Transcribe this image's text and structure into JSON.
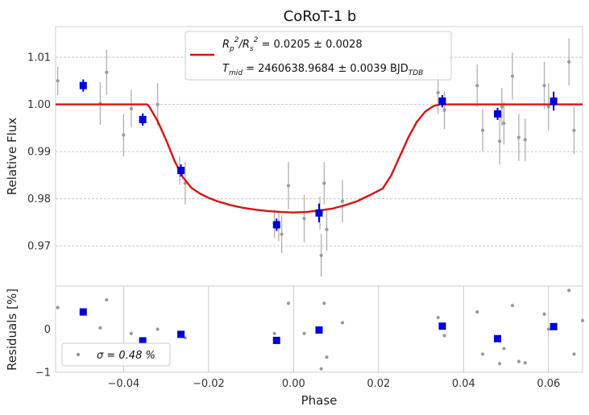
{
  "chart_data": [
    {
      "type": "scatter",
      "title": "CoRoT-1 b",
      "xlabel": "",
      "ylabel": "Relative Flux",
      "xlim": [
        -0.056,
        0.068
      ],
      "ylim": [
        0.9615,
        1.0165
      ],
      "y_ticks": [
        0.97,
        0.98,
        0.99,
        1.0,
        1.01
      ],
      "y_tick_labels": [
        "0.97",
        "0.98",
        "0.99",
        "1.00",
        "1.01"
      ],
      "grid": true,
      "legend": {
        "placement": "top-center",
        "model_line_1": "R_p^2/R_s^2 = 0.0205 ± 0.0028",
        "model_line_2": "T_mid = 2460638.9684 ± 0.0039 BJD_TDB"
      },
      "series": [
        {
          "kind": "raw",
          "color": "#9a9a9a",
          "points": [
            {
              "x": -0.0555,
              "y": 1.005,
              "err": 0.003
            },
            {
              "x": -0.0455,
              "y": 1.0002,
              "err": 0.0045
            },
            {
              "x": -0.044,
              "y": 1.0068,
              "err": 0.0048
            },
            {
              "x": -0.04,
              "y": 0.9935,
              "err": 0.0045
            },
            {
              "x": -0.0382,
              "y": 0.9991,
              "err": 0.004
            },
            {
              "x": -0.032,
              "y": 1.0,
              "err": 0.0045
            },
            {
              "x": -0.0268,
              "y": 0.986,
              "err": 0.003
            },
            {
              "x": -0.0255,
              "y": 0.9833,
              "err": 0.0045
            },
            {
              "x": -0.0045,
              "y": 0.9747,
              "err": 0.003
            },
            {
              "x": -0.0035,
              "y": 0.974,
              "err": 0.003
            },
            {
              "x": -0.0028,
              "y": 0.9725,
              "err": 0.004
            },
            {
              "x": -0.0012,
              "y": 0.9828,
              "err": 0.005
            },
            {
              "x": 0.0025,
              "y": 0.9758,
              "err": 0.005
            },
            {
              "x": 0.0062,
              "y": 0.977,
              "err": 0.0035
            },
            {
              "x": 0.0065,
              "y": 0.968,
              "err": 0.0045
            },
            {
              "x": 0.0072,
              "y": 0.9833,
              "err": 0.0045
            },
            {
              "x": 0.0078,
              "y": 0.9735,
              "err": 0.0045
            },
            {
              "x": 0.0115,
              "y": 0.9795,
              "err": 0.0045
            },
            {
              "x": 0.034,
              "y": 1.0025,
              "err": 0.0045
            },
            {
              "x": 0.0355,
              "y": 0.9988,
              "err": 0.004
            },
            {
              "x": 0.0432,
              "y": 1.004,
              "err": 0.0045
            },
            {
              "x": 0.0445,
              "y": 0.9945,
              "err": 0.0045
            },
            {
              "x": 0.0485,
              "y": 0.9922,
              "err": 0.005
            },
            {
              "x": 0.049,
              "y": 0.9995,
              "err": 0.004
            },
            {
              "x": 0.0495,
              "y": 0.996,
              "err": 0.0045
            },
            {
              "x": 0.0515,
              "y": 1.006,
              "err": 0.005
            },
            {
              "x": 0.053,
              "y": 0.993,
              "err": 0.005
            },
            {
              "x": 0.0545,
              "y": 0.9925,
              "err": 0.0045
            },
            {
              "x": 0.059,
              "y": 1.004,
              "err": 0.005
            },
            {
              "x": 0.06,
              "y": 0.9995,
              "err": 0.005
            },
            {
              "x": 0.0648,
              "y": 1.009,
              "err": 0.005
            },
            {
              "x": 0.066,
              "y": 0.9945,
              "err": 0.005
            }
          ]
        },
        {
          "kind": "binned",
          "color": "#0000dd",
          "points": [
            {
              "x": -0.0495,
              "y": 1.004,
              "err": 0.0013
            },
            {
              "x": -0.0355,
              "y": 0.9968,
              "err": 0.0013
            },
            {
              "x": -0.0265,
              "y": 0.986,
              "err": 0.0013
            },
            {
              "x": -0.004,
              "y": 0.9745,
              "err": 0.0013
            },
            {
              "x": 0.006,
              "y": 0.977,
              "err": 0.002
            },
            {
              "x": 0.035,
              "y": 1.0007,
              "err": 0.0013
            },
            {
              "x": 0.048,
              "y": 0.998,
              "err": 0.0013
            },
            {
              "x": 0.0612,
              "y": 1.0007,
              "err": 0.002
            }
          ]
        },
        {
          "kind": "model",
          "color": "#dd1111",
          "x": [
            -0.056,
            -0.0345,
            -0.034,
            -0.032,
            -0.03,
            -0.028,
            -0.026,
            -0.024,
            -0.022,
            -0.02,
            -0.018,
            -0.015,
            -0.012,
            -0.009,
            -0.006,
            -0.003,
            0.0,
            0.003,
            0.006,
            0.009,
            0.012,
            0.015,
            0.018,
            0.021,
            0.023,
            0.025,
            0.027,
            0.029,
            0.031,
            0.033,
            0.0345,
            0.035,
            0.068
          ],
          "y": [
            1.0,
            1.0,
            0.9996,
            0.9965,
            0.9925,
            0.988,
            0.9845,
            0.9823,
            0.9811,
            0.9802,
            0.9795,
            0.9787,
            0.9781,
            0.9777,
            0.9774,
            0.9772,
            0.9771,
            0.9772,
            0.9775,
            0.9779,
            0.9786,
            0.9795,
            0.9808,
            0.9822,
            0.985,
            0.989,
            0.993,
            0.9963,
            0.9985,
            0.9997,
            1.0,
            1.0,
            1.0
          ]
        }
      ]
    },
    {
      "type": "scatter",
      "title": "",
      "xlabel": "Phase",
      "ylabel": "Residuals [%]",
      "xlim": [
        -0.056,
        0.068
      ],
      "ylim": [
        -1.0,
        1.0
      ],
      "x_ticks": [
        -0.04,
        -0.02,
        0.0,
        0.02,
        0.04,
        0.06
      ],
      "x_tick_labels": [
        "−0.04",
        "−0.02",
        "0.00",
        "0.02",
        "0.04",
        "0.06"
      ],
      "y_ticks": [
        -1,
        0
      ],
      "y_tick_labels": [
        "−1",
        "0"
      ],
      "grid": true,
      "legend": {
        "placement": "bottom-left",
        "label": "σ = 0.48 %"
      },
      "series": [
        {
          "kind": "raw",
          "color": "#9a9a9a",
          "points": [
            {
              "x": -0.0555,
              "y": 0.5
            },
            {
              "x": -0.0455,
              "y": 0.03
            },
            {
              "x": -0.044,
              "y": 0.68
            },
            {
              "x": -0.0382,
              "y": -0.1
            },
            {
              "x": -0.032,
              "y": 0.0
            },
            {
              "x": -0.0268,
              "y": -0.1
            },
            {
              "x": -0.0255,
              "y": -0.2
            },
            {
              "x": -0.0045,
              "y": -0.1
            },
            {
              "x": -0.0012,
              "y": 0.6
            },
            {
              "x": 0.0025,
              "y": -0.1
            },
            {
              "x": 0.0065,
              "y": -0.92
            },
            {
              "x": 0.0072,
              "y": 0.6
            },
            {
              "x": 0.0078,
              "y": -0.65
            },
            {
              "x": 0.0115,
              "y": 0.15
            },
            {
              "x": 0.034,
              "y": 0.27
            },
            {
              "x": 0.0355,
              "y": -0.15
            },
            {
              "x": 0.0432,
              "y": 0.4
            },
            {
              "x": 0.0445,
              "y": -0.58
            },
            {
              "x": 0.0485,
              "y": -0.8
            },
            {
              "x": 0.0495,
              "y": -0.45
            },
            {
              "x": 0.0515,
              "y": 0.55
            },
            {
              "x": 0.053,
              "y": -0.75
            },
            {
              "x": 0.0545,
              "y": -0.78
            },
            {
              "x": 0.059,
              "y": 0.35
            },
            {
              "x": 0.06,
              "y": 0.0
            },
            {
              "x": 0.0648,
              "y": 0.9
            },
            {
              "x": 0.066,
              "y": -0.58
            },
            {
              "x": 0.068,
              "y": 0.2
            }
          ]
        },
        {
          "kind": "binned",
          "color": "#0000dd",
          "points": [
            {
              "x": -0.0495,
              "y": 0.4
            },
            {
              "x": -0.0355,
              "y": -0.27
            },
            {
              "x": -0.0265,
              "y": -0.12
            },
            {
              "x": -0.004,
              "y": -0.26
            },
            {
              "x": 0.006,
              "y": -0.02
            },
            {
              "x": 0.035,
              "y": 0.07
            },
            {
              "x": 0.048,
              "y": -0.22
            },
            {
              "x": 0.0612,
              "y": 0.06
            }
          ]
        }
      ]
    }
  ]
}
